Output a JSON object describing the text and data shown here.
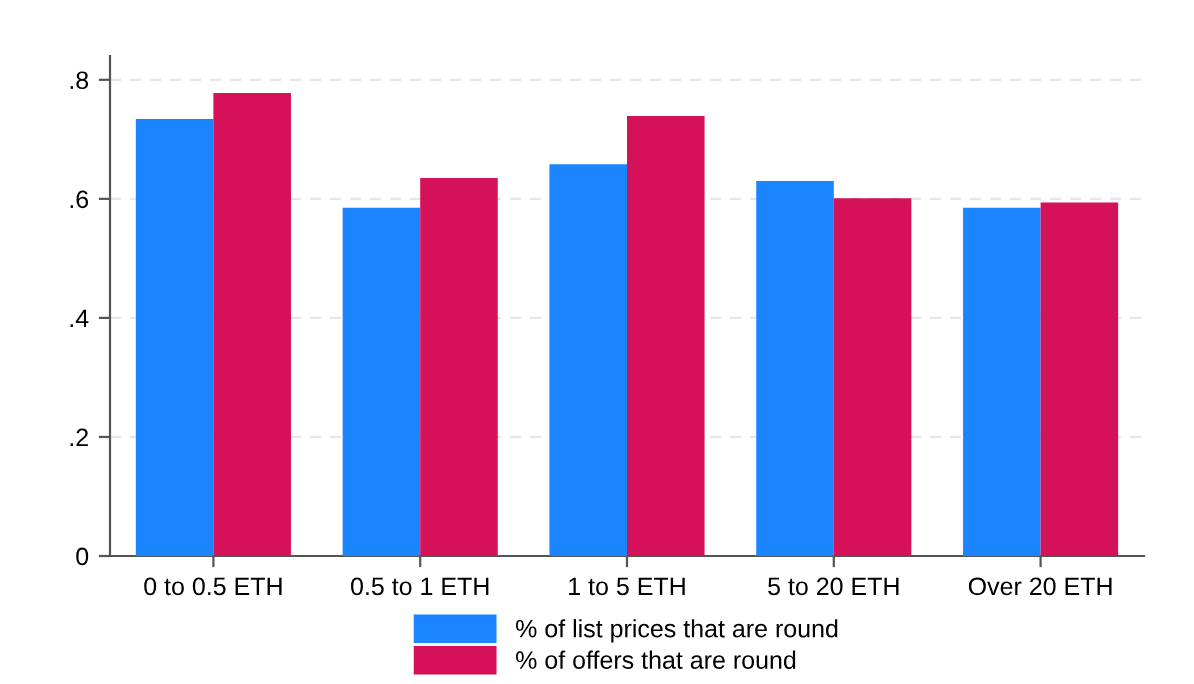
{
  "chart_data": {
    "type": "bar",
    "categories": [
      "0 to 0.5 ETH",
      "0.5 to 1 ETH",
      "1 to 5 ETH",
      "5 to 20 ETH",
      "Over 20 ETH"
    ],
    "series": [
      {
        "name": "% of list prices that are round",
        "color": "#1a85ff",
        "values": [
          0.734,
          0.585,
          0.658,
          0.63,
          0.585
        ]
      },
      {
        "name": "% of offers that are round",
        "color": "#d41159",
        "values": [
          0.778,
          0.635,
          0.739,
          0.601,
          0.594
        ]
      }
    ],
    "ylim": [
      0,
      0.84
    ],
    "yticks": [
      0,
      {
        "value": 0.2,
        "label": ".2"
      },
      {
        "value": 0.4,
        "label": ".4"
      },
      {
        "value": 0.6,
        "label": ".6"
      },
      {
        "value": 0.8,
        "label": ".8"
      }
    ],
    "grid": "y",
    "legend": "bottom"
  }
}
